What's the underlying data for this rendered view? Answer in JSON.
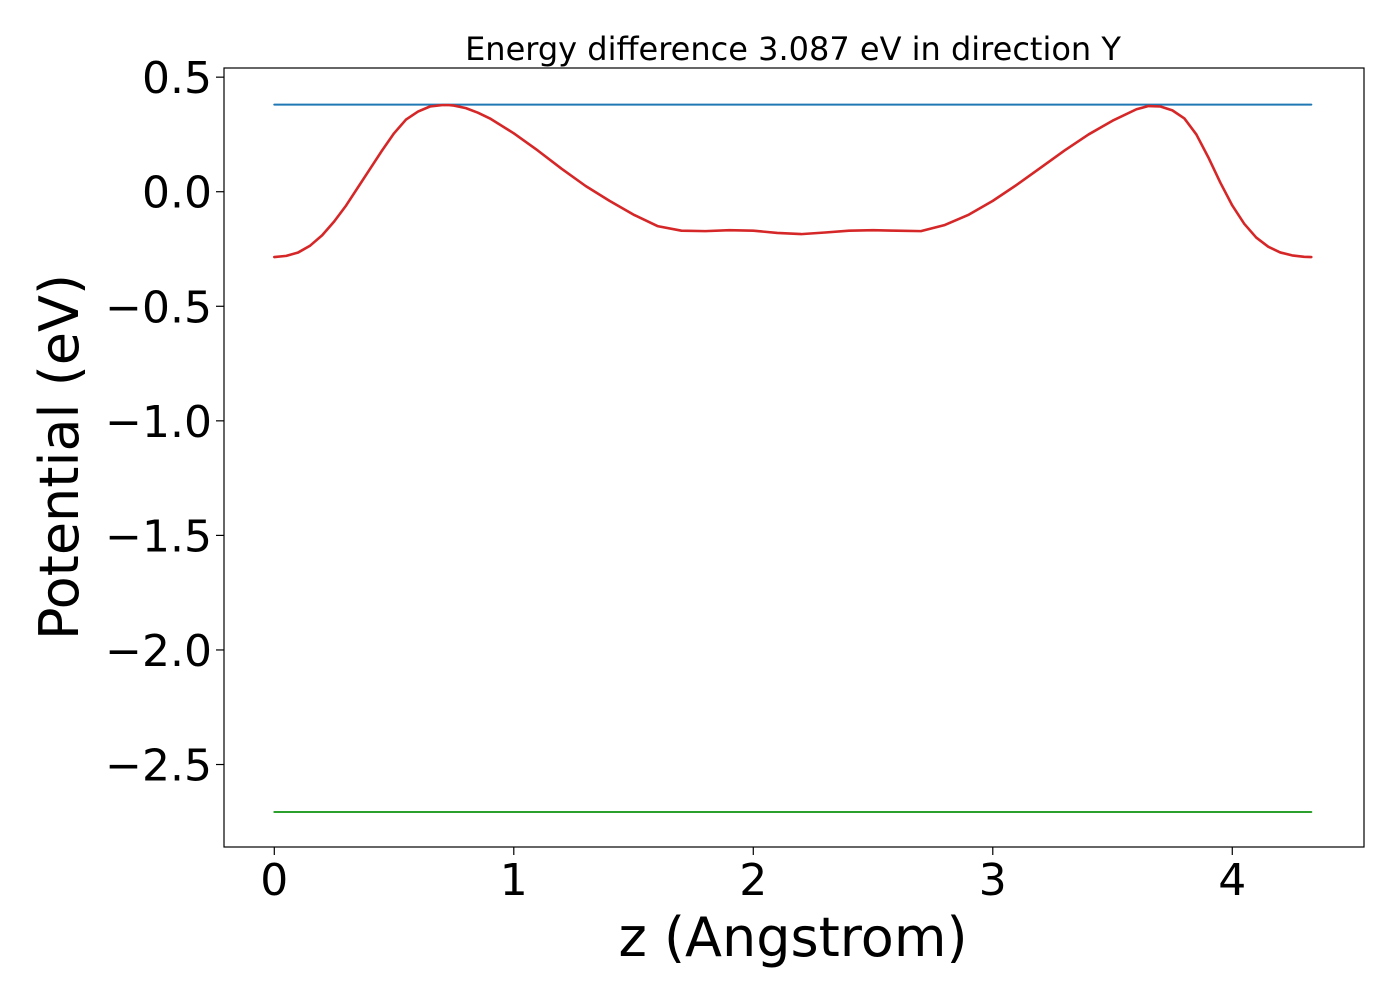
{
  "chart_data": {
    "type": "line",
    "title": "Energy difference 3.087 eV in direction Y",
    "xlabel": "z (Angstrom)",
    "ylabel": "Potential (eV)",
    "xlim": [
      -0.21,
      4.55
    ],
    "ylim": [
      -2.86,
      0.54
    ],
    "x_ticks": [
      0,
      1,
      2,
      3,
      4
    ],
    "x_tick_labels": [
      "0",
      "1",
      "2",
      "3",
      "4"
    ],
    "y_ticks": [
      0.5,
      0.0,
      -0.5,
      -1.0,
      -1.5,
      -2.0,
      -2.5
    ],
    "y_tick_labels": [
      "0.5",
      "0.0",
      "−0.5",
      "−1.0",
      "−1.5",
      "−2.0",
      "−2.5"
    ],
    "grid": false,
    "legend": "none",
    "series": [
      {
        "color": "#1f77b4",
        "x": [
          0,
          4.33
        ],
        "y": [
          0.38,
          0.38
        ]
      },
      {
        "color": "#2ca02c",
        "x": [
          0,
          4.33
        ],
        "y": [
          -2.707,
          -2.707
        ]
      },
      {
        "color": "#d62728",
        "x": [
          0,
          0.05,
          0.1,
          0.15,
          0.2,
          0.25,
          0.3,
          0.35,
          0.4,
          0.45,
          0.5,
          0.55,
          0.6,
          0.65,
          0.7,
          0.73,
          0.75,
          0.8,
          0.85,
          0.9,
          1.0,
          1.1,
          1.2,
          1.3,
          1.4,
          1.5,
          1.6,
          1.7,
          1.8,
          1.9,
          2.0,
          2.1,
          2.2,
          2.3,
          2.4,
          2.5,
          2.6,
          2.7,
          2.8,
          2.9,
          3.0,
          3.1,
          3.2,
          3.3,
          3.4,
          3.5,
          3.6,
          3.65,
          3.7,
          3.75,
          3.8,
          3.85,
          3.9,
          3.95,
          4.0,
          4.05,
          4.1,
          4.15,
          4.2,
          4.25,
          4.3,
          4.33
        ],
        "y": [
          -0.285,
          -0.28,
          -0.265,
          -0.235,
          -0.19,
          -0.13,
          -0.06,
          0.02,
          0.1,
          0.18,
          0.255,
          0.315,
          0.35,
          0.372,
          0.378,
          0.378,
          0.376,
          0.365,
          0.345,
          0.32,
          0.255,
          0.18,
          0.1,
          0.025,
          -0.04,
          -0.1,
          -0.15,
          -0.17,
          -0.172,
          -0.168,
          -0.17,
          -0.18,
          -0.185,
          -0.178,
          -0.17,
          -0.168,
          -0.17,
          -0.172,
          -0.145,
          -0.1,
          -0.04,
          0.03,
          0.105,
          0.18,
          0.25,
          0.31,
          0.36,
          0.374,
          0.372,
          0.355,
          0.32,
          0.25,
          0.15,
          0.04,
          -0.06,
          -0.14,
          -0.2,
          -0.24,
          -0.265,
          -0.278,
          -0.284,
          -0.285
        ]
      }
    ]
  }
}
